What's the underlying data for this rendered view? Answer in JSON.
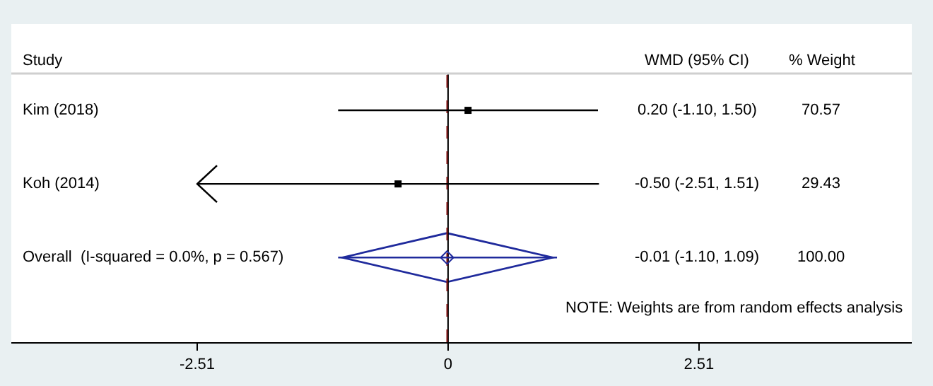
{
  "chart_data": {
    "type": "scatter",
    "orientation": "horizontal",
    "ylabel": "Study",
    "categories": [
      "Kim (2018)",
      "Koh (2014)",
      "Overall  (I-squared = 0.0%, p = 0.567)"
    ],
    "series": [
      {
        "color": "#000000",
        "marker": "square",
        "values": [
          0.2,
          -0.5,
          null
        ],
        "errors": [
          [
            -1.1,
            1.5
          ],
          [
            -2.51,
            1.51
          ],
          null
        ]
      },
      {
        "color": "#1f2a9c",
        "marker": "diamond",
        "values": [
          null,
          null,
          -0.01
        ],
        "errors": [
          null,
          null,
          [
            -1.1,
            1.09
          ]
        ]
      }
    ],
    "xlim": [
      -4.37,
      4.64
    ],
    "xticks": [
      -2.51,
      0,
      2.51
    ],
    "ref_lines": [
      {
        "axis": "x",
        "value": 0,
        "color": "#000000",
        "line_style": "solid"
      },
      {
        "axis": "x",
        "value": -0.01,
        "color": "#8b1a1a",
        "line_style": "dashed"
      }
    ],
    "annotations": [
      "WMD (95% CI)",
      "% Weight",
      "0.20 (-1.10, 1.50)",
      "70.57",
      "-0.50 (-2.51, 1.51)",
      "29.43",
      "-0.01 (-1.10, 1.09)",
      "100.00",
      "NOTE: Weights are from random effects analysis"
    ],
    "grid": false
  }
}
